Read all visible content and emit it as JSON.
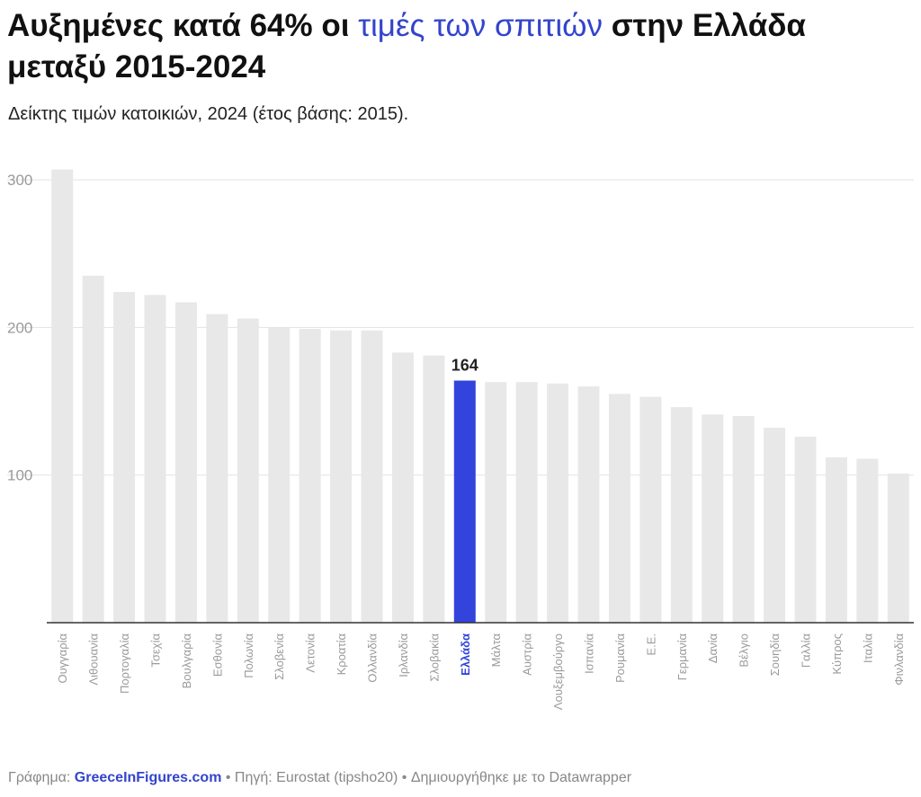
{
  "title": {
    "part1": "Αυξημένες κατά 64% οι ",
    "highlight": "τιμές των σπιτιών",
    "part2": " στην Ελλάδα μεταξύ 2015-2024"
  },
  "subtitle": "Δείκτης τιμών κατοικιών, 2024 (έτος βάσης: 2015).",
  "footer": {
    "graph_label": "Γράφημα: ",
    "brand": "GreeceInFigures.com",
    "source": " • Πηγή: Eurostat (tipsho20) • Δημιουργήθηκε με το Datawrapper"
  },
  "colors": {
    "bar": "#e8e8e8",
    "highlight": "#3344dd",
    "grid": "#e3e3e3",
    "axis_label": "#9a9a9a"
  },
  "chart_data": {
    "type": "bar",
    "title": "Αυξημένες κατά 64% οι τιμές των σπιτιών στην Ελλάδα μεταξύ 2015-2024",
    "subtitle": "Δείκτης τιμών κατοικιών, 2024 (έτος βάσης: 2015).",
    "xlabel": "",
    "ylabel": "",
    "ylim": [
      0,
      310
    ],
    "yticks": [
      100,
      200,
      300
    ],
    "grid": true,
    "highlight_category": "Ελλάδα",
    "highlight_label": "164",
    "categories": [
      "Ουγγαρία",
      "Λιθουανία",
      "Πορτογαλία",
      "Τσεχία",
      "Βουλγαρία",
      "Εσθονία",
      "Πολωνία",
      "Σλοβενία",
      "Λετονία",
      "Κροατία",
      "Ολλανδία",
      "Ιρλανδία",
      "Σλοβακία",
      "Ελλάδα",
      "Μάλτα",
      "Αυστρία",
      "Λουξεμβούργο",
      "Ισπανία",
      "Ρουμανία",
      "Ε.Ε.",
      "Γερμανία",
      "Δανία",
      "Βέλγιο",
      "Σουηδία",
      "Γαλλία",
      "Κύπρος",
      "Ιταλία",
      "Φινλανδία"
    ],
    "values": [
      307,
      235,
      224,
      222,
      217,
      209,
      206,
      200,
      199,
      198,
      198,
      183,
      181,
      164,
      163,
      163,
      162,
      160,
      155,
      153,
      146,
      141,
      140,
      132,
      126,
      112,
      111,
      101
    ]
  }
}
